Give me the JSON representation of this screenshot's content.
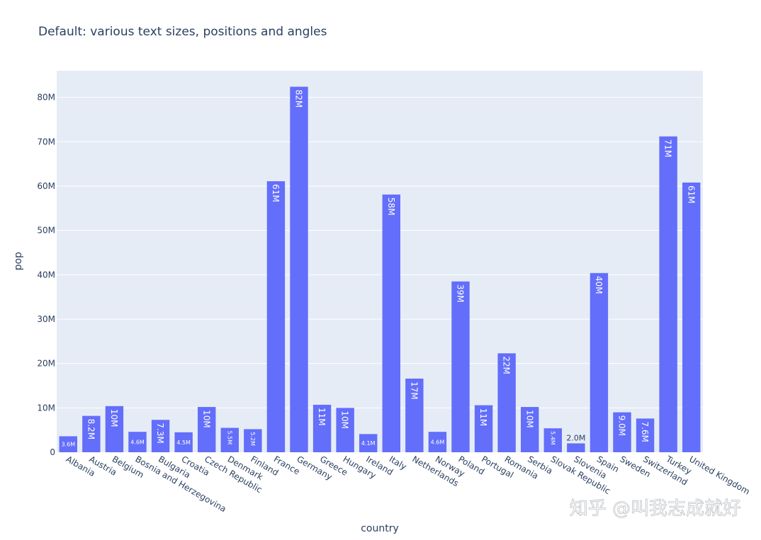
{
  "chart_data": {
    "type": "bar",
    "title": "Default: various text sizes, positions and angles",
    "xlabel": "country",
    "ylabel": "pop",
    "ylim": [
      0,
      86000000
    ],
    "ytick_values": [
      0,
      10000000,
      20000000,
      30000000,
      40000000,
      50000000,
      60000000,
      70000000,
      80000000
    ],
    "ytick_labels": [
      "0",
      "10M",
      "20M",
      "30M",
      "40M",
      "50M",
      "60M",
      "70M",
      "80M"
    ],
    "grid": true,
    "bar_color": "#636efa",
    "plot_background": "#e5ecf6",
    "categories": [
      "Albania",
      "Austria",
      "Belgium",
      "Bosnia and Herzegovina",
      "Bulgaria",
      "Croatia",
      "Czech Republic",
      "Denmark",
      "Finland",
      "France",
      "Germany",
      "Greece",
      "Hungary",
      "Ireland",
      "Italy",
      "Netherlands",
      "Norway",
      "Poland",
      "Portugal",
      "Romania",
      "Serbia",
      "Slovak Republic",
      "Slovenia",
      "Spain",
      "Sweden",
      "Switzerland",
      "Turkey",
      "United Kingdom"
    ],
    "values": [
      3600000,
      8200000,
      10400000,
      4600000,
      7300000,
      4500000,
      10200000,
      5500000,
      5200000,
      61100000,
      82400000,
      10700000,
      10000000,
      4100000,
      58100000,
      16600000,
      4600000,
      38500000,
      10600000,
      22300000,
      10200000,
      5400000,
      2000000,
      40400000,
      9000000,
      7600000,
      71200000,
      60800000
    ],
    "data_labels": [
      "3.6M",
      "8.2M",
      "10M",
      "4.6M",
      "7.3M",
      "4.5M",
      "10M",
      "5.5M",
      "5.2M",
      "61M",
      "82M",
      "11M",
      "10M",
      "4.1M",
      "58M",
      "17M",
      "4.6M",
      "39M",
      "11M",
      "22M",
      "10M",
      "5.4M",
      "2.0M",
      "40M",
      "9.0M",
      "7.6M",
      "71M",
      "61M"
    ]
  },
  "watermark": "知乎 @叫我志成就好"
}
